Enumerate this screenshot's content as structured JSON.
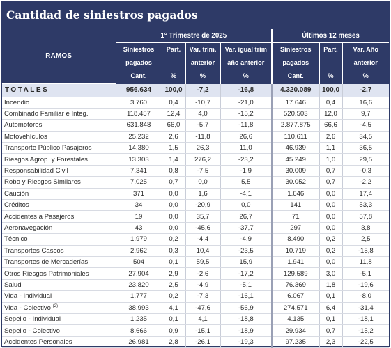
{
  "title": "Cantidad de siniestros pagados",
  "header": {
    "ramos": "RAMOS",
    "group1": "1° Trimestre de 2025",
    "group2": "Últimos 12 meses",
    "cols": [
      {
        "l1": "Siniestros",
        "l2": "pagados",
        "l3": "Cant."
      },
      {
        "l1": "Part.",
        "l2": "",
        "l3": "%"
      },
      {
        "l1": "Var. trim.",
        "l2": "anterior",
        "l3": "%"
      },
      {
        "l1": "Var. igual trim",
        "l2": "año anterior",
        "l3": "%"
      },
      {
        "l1": "Siniestros",
        "l2": "pagados",
        "l3": "Cant."
      },
      {
        "l1": "Part.",
        "l2": "",
        "l3": "%"
      },
      {
        "l1": "Var. Año",
        "l2": "anterior",
        "l3": "%"
      }
    ]
  },
  "totals": {
    "name": "TOTALES",
    "values": [
      "956.634",
      "100,0",
      "-7,2",
      "-16,8",
      "4.320.089",
      "100,0",
      "-2,7"
    ]
  },
  "rows": [
    {
      "name": "Incendio",
      "sup": "",
      "values": [
        "3.760",
        "0,4",
        "-10,7",
        "-21,0",
        "17.646",
        "0,4",
        "16,6"
      ]
    },
    {
      "name": "Combinado Familiar e Integ.",
      "sup": "",
      "values": [
        "118.457",
        "12,4",
        "4,0",
        "-15,2",
        "520.503",
        "12,0",
        "9,7"
      ]
    },
    {
      "name": "Automotores",
      "sup": "",
      "values": [
        "631.848",
        "66,0",
        "-5,7",
        "-11,8",
        "2.877.875",
        "66,6",
        "-4,5"
      ]
    },
    {
      "name": "Motovehículos",
      "sup": "",
      "values": [
        "25.232",
        "2,6",
        "-11,8",
        "26,6",
        "110.611",
        "2,6",
        "34,5"
      ]
    },
    {
      "name": "Transporte Público Pasajeros",
      "sup": "",
      "values": [
        "14.380",
        "1,5",
        "26,3",
        "11,0",
        "46.939",
        "1,1",
        "36,5"
      ]
    },
    {
      "name": "Riesgos Agrop. y Forestales",
      "sup": "",
      "values": [
        "13.303",
        "1,4",
        "276,2",
        "-23,2",
        "45.249",
        "1,0",
        "29,5"
      ]
    },
    {
      "name": "Responsabilidad Civil",
      "sup": "",
      "values": [
        "7.341",
        "0,8",
        "-7,5",
        "-1,9",
        "30.009",
        "0,7",
        "-0,3"
      ]
    },
    {
      "name": "Robo y Riesgos Similares",
      "sup": "",
      "values": [
        "7.025",
        "0,7",
        "0,0",
        "5,5",
        "30.052",
        "0,7",
        "-2,2"
      ]
    },
    {
      "name": "Caución",
      "sup": "",
      "values": [
        "371",
        "0,0",
        "1,6",
        "-4,1",
        "1.646",
        "0,0",
        "17,4"
      ]
    },
    {
      "name": "Créditos",
      "sup": "",
      "values": [
        "34",
        "0,0",
        "-20,9",
        "0,0",
        "141",
        "0,0",
        "53,3"
      ]
    },
    {
      "name": "Accidentes a Pasajeros",
      "sup": "",
      "values": [
        "19",
        "0,0",
        "35,7",
        "26,7",
        "71",
        "0,0",
        "57,8"
      ]
    },
    {
      "name": "Aeronavegación",
      "sup": "",
      "values": [
        "43",
        "0,0",
        "-45,6",
        "-37,7",
        "297",
        "0,0",
        "3,8"
      ]
    },
    {
      "name": "Técnico",
      "sup": "",
      "values": [
        "1.979",
        "0,2",
        "-4,4",
        "-4,9",
        "8.490",
        "0,2",
        "2,5"
      ]
    },
    {
      "name": "Transportes Cascos",
      "sup": "",
      "values": [
        "2.962",
        "0,3",
        "10,4",
        "-23,5",
        "10.719",
        "0,2",
        "-15,8"
      ]
    },
    {
      "name": "Transportes de Mercaderías",
      "sup": "",
      "values": [
        "504",
        "0,1",
        "59,5",
        "15,9",
        "1.941",
        "0,0",
        "11,8"
      ]
    },
    {
      "name": "Otros Riesgos Patrimoniales",
      "sup": "",
      "values": [
        "27.904",
        "2,9",
        "-2,6",
        "-17,2",
        "129.589",
        "3,0",
        "-5,1"
      ]
    },
    {
      "name": "Salud",
      "sup": "",
      "values": [
        "23.820",
        "2,5",
        "-4,9",
        "-5,1",
        "76.369",
        "1,8",
        "-19,6"
      ]
    },
    {
      "name": "Vida - Individual",
      "sup": "",
      "values": [
        "1.777",
        "0,2",
        "-7,3",
        "-16,1",
        "6.067",
        "0,1",
        "-8,0"
      ]
    },
    {
      "name": "Vida - Colectivo ",
      "sup": "(2)",
      "values": [
        "38.993",
        "4,1",
        "-47,6",
        "-56,9",
        "274.571",
        "6,4",
        "-31,4"
      ]
    },
    {
      "name": "Sepelio - Individual",
      "sup": "",
      "values": [
        "1.235",
        "0,1",
        "4,1",
        "-18,8",
        "4.135",
        "0,1",
        "-18,1"
      ]
    },
    {
      "name": "Sepelio - Colectivo",
      "sup": "",
      "values": [
        "8.666",
        "0,9",
        "-15,1",
        "-18,9",
        "29.934",
        "0,7",
        "-15,2"
      ]
    },
    {
      "name": "Accidentes Personales",
      "sup": "",
      "values": [
        "26.981",
        "2,8",
        "-26,1",
        "-19,3",
        "97.235",
        "2,3",
        "-22,5"
      ]
    }
  ]
}
